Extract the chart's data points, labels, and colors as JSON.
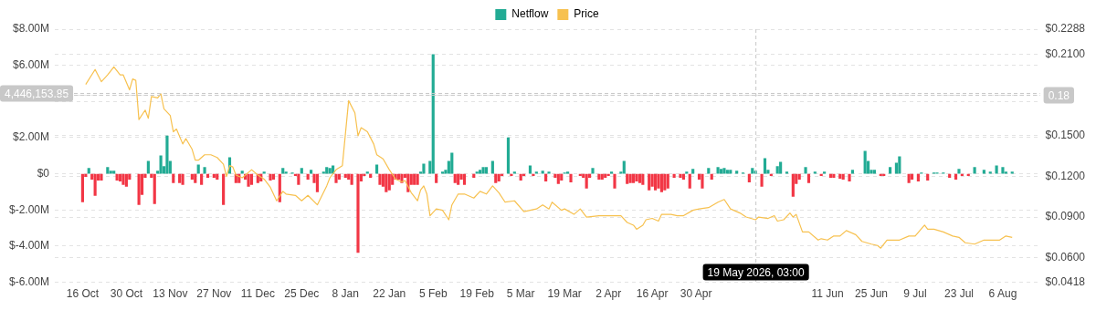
{
  "chart_data": {
    "type": "bar",
    "legend": "top",
    "grid": "y",
    "xlim": [
      "2025-10-15",
      "2026-08-10"
    ],
    "xticks": [
      {
        "value": "2025-10-16",
        "label": "16 Oct"
      },
      {
        "value": "2025-10-30",
        "label": "30 Oct"
      },
      {
        "value": "2025-11-13",
        "label": "13 Nov"
      },
      {
        "value": "2025-11-27",
        "label": "27 Nov"
      },
      {
        "value": "2025-12-11",
        "label": "11 Dec"
      },
      {
        "value": "2025-12-25",
        "label": "25 Dec"
      },
      {
        "value": "2026-01-08",
        "label": "8 Jan"
      },
      {
        "value": "2026-01-22",
        "label": "22 Jan"
      },
      {
        "value": "2026-02-05",
        "label": "5 Feb"
      },
      {
        "value": "2026-02-19",
        "label": "19 Feb"
      },
      {
        "value": "2026-03-05",
        "label": "5 Mar"
      },
      {
        "value": "2026-03-19",
        "label": "19 Mar"
      },
      {
        "value": "2026-04-02",
        "label": "2 Apr"
      },
      {
        "value": "2026-04-16",
        "label": "16 Apr"
      },
      {
        "value": "2026-04-30",
        "label": "30 Apr"
      },
      {
        "value": "2026-06-11",
        "label": "11 Jun"
      },
      {
        "value": "2026-06-25",
        "label": "25 Jun"
      },
      {
        "value": "2026-07-09",
        "label": "9 Jul"
      },
      {
        "value": "2026-07-23",
        "label": "23 Jul"
      },
      {
        "value": "2026-08-06",
        "label": "6 Aug"
      }
    ],
    "ylim": [
      -6000000,
      8000000
    ],
    "yticks": [
      {
        "value": -6000000,
        "label": "$-6.00M"
      },
      {
        "value": -4000000,
        "label": "$-4.00M"
      },
      {
        "value": -2000000,
        "label": "$-2.00M"
      },
      {
        "value": 0,
        "label": "$0"
      },
      {
        "value": 2000000,
        "label": "$2.00M"
      },
      {
        "value": 4000000,
        "label": null
      },
      {
        "value": 6000000,
        "label": "$6.00M"
      },
      {
        "value": 8000000,
        "label": "$8.00M"
      }
    ],
    "y2lim": [
      0.0418,
      0.2288
    ],
    "y2ticks": [
      {
        "value": 0.0418,
        "label": "$0.0418"
      },
      {
        "value": 0.06,
        "label": "$0.0600"
      },
      {
        "value": 0.09,
        "label": "$0.0900"
      },
      {
        "value": 0.12,
        "label": "$0.1200"
      },
      {
        "value": 0.15,
        "label": "$0.1500"
      },
      {
        "value": 0.18,
        "label": null
      },
      {
        "value": 0.21,
        "label": "$0.2100"
      },
      {
        "value": 0.2288,
        "label": "$0.2288"
      }
    ],
    "ref_lines": [
      {
        "axis": "x",
        "value": "2026-05-19T03:00",
        "label": "19 May 2026, 03:00",
        "color": "#c8c8c8",
        "line_style": "dashed"
      },
      {
        "axis": "y",
        "value": 4446153.85,
        "label": "4,446,153.85",
        "color": "#c8c8c8",
        "line_style": "dashed"
      },
      {
        "axis": "y2",
        "value": 0.18,
        "label": "0.18",
        "color": "#c8c8c8",
        "line_style": "dashed"
      }
    ],
    "series": [
      {
        "name": "Netflow",
        "color": "#22ab94",
        "x": [
          "2025-10-16",
          "2025-10-17",
          "2025-10-18",
          "2025-10-19",
          "2025-10-20",
          "2025-10-21",
          "2025-10-22",
          "2025-10-24",
          "2025-10-25",
          "2025-10-26",
          "2025-10-27",
          "2025-10-28",
          "2025-10-29",
          "2025-10-30",
          "2025-10-31",
          "2025-11-03",
          "2025-11-04",
          "2025-11-05",
          "2025-11-06",
          "2025-11-07",
          "2025-11-08",
          "2025-11-09",
          "2025-11-10",
          "2025-11-11",
          "2025-11-12",
          "2025-11-13",
          "2025-11-14",
          "2025-11-16",
          "2025-11-17",
          "2025-11-20",
          "2025-11-21",
          "2025-11-22",
          "2025-11-23",
          "2025-11-24",
          "2025-11-25",
          "2025-11-27",
          "2025-11-28",
          "2025-11-30",
          "2025-12-02",
          "2025-12-04",
          "2025-12-05",
          "2025-12-06",
          "2025-12-07",
          "2025-12-08",
          "2025-12-09",
          "2025-12-11",
          "2025-12-12",
          "2025-12-13",
          "2025-12-15",
          "2025-12-16",
          "2025-12-18",
          "2025-12-19",
          "2025-12-20",
          "2025-12-22",
          "2025-12-23",
          "2025-12-24",
          "2025-12-25",
          "2025-12-27",
          "2025-12-28",
          "2025-12-29",
          "2025-12-30",
          "2026-01-01",
          "2026-01-02",
          "2026-01-03",
          "2026-01-04",
          "2026-01-05",
          "2026-01-06",
          "2026-01-08",
          "2026-01-09",
          "2026-01-10",
          "2026-01-12",
          "2026-01-13",
          "2026-01-14",
          "2026-01-15",
          "2026-01-16",
          "2026-01-18",
          "2026-01-19",
          "2026-01-20",
          "2026-01-21",
          "2026-01-22",
          "2026-01-23",
          "2026-01-24",
          "2026-01-25",
          "2026-01-26",
          "2026-01-27",
          "2026-01-28",
          "2026-01-29",
          "2026-01-30",
          "2026-01-31",
          "2026-02-01",
          "2026-02-02",
          "2026-02-04",
          "2026-02-05",
          "2026-02-06",
          "2026-02-08",
          "2026-02-09",
          "2026-02-10",
          "2026-02-11",
          "2026-02-12",
          "2026-02-13",
          "2026-02-14",
          "2026-02-15",
          "2026-02-18",
          "2026-02-19",
          "2026-02-20",
          "2026-02-21",
          "2026-02-22",
          "2026-02-24",
          "2026-02-25",
          "2026-02-26",
          "2026-02-27",
          "2026-03-01",
          "2026-03-02",
          "2026-03-03",
          "2026-03-05",
          "2026-03-06",
          "2026-03-08",
          "2026-03-09",
          "2026-03-10",
          "2026-03-12",
          "2026-03-13",
          "2026-03-14",
          "2026-03-16",
          "2026-03-17",
          "2026-03-18",
          "2026-03-19",
          "2026-03-20",
          "2026-03-21",
          "2026-03-24",
          "2026-03-25",
          "2026-03-26",
          "2026-03-27",
          "2026-03-28",
          "2026-03-30",
          "2026-03-31",
          "2026-04-01",
          "2026-04-02",
          "2026-04-03",
          "2026-04-04",
          "2026-04-06",
          "2026-04-07",
          "2026-04-08",
          "2026-04-09",
          "2026-04-10",
          "2026-04-11",
          "2026-04-12",
          "2026-04-13",
          "2026-04-15",
          "2026-04-16",
          "2026-04-17",
          "2026-04-18",
          "2026-04-19",
          "2026-04-20",
          "2026-04-21",
          "2026-04-23",
          "2026-04-25",
          "2026-04-26",
          "2026-04-27",
          "2026-04-28",
          "2026-04-29",
          "2026-05-01",
          "2026-05-02",
          "2026-05-04",
          "2026-05-05",
          "2026-05-07",
          "2026-05-08",
          "2026-05-09",
          "2026-05-10",
          "2026-05-11",
          "2026-05-13",
          "2026-05-15",
          "2026-05-17",
          "2026-05-18",
          "2026-05-19",
          "2026-05-21",
          "2026-05-22",
          "2026-05-23",
          "2026-05-24",
          "2026-05-26",
          "2026-05-27",
          "2026-05-29",
          "2026-05-31",
          "2026-06-01",
          "2026-06-02",
          "2026-06-04",
          "2026-06-05",
          "2026-06-07",
          "2026-06-09",
          "2026-06-10",
          "2026-06-12",
          "2026-06-13",
          "2026-06-15",
          "2026-06-16",
          "2026-06-18",
          "2026-06-19",
          "2026-06-23",
          "2026-06-24",
          "2026-06-25",
          "2026-06-26",
          "2026-06-28",
          "2026-06-29",
          "2026-07-01",
          "2026-07-03",
          "2026-07-04",
          "2026-07-07",
          "2026-07-08",
          "2026-07-10",
          "2026-07-11",
          "2026-07-13",
          "2026-07-15",
          "2026-07-16",
          "2026-07-18",
          "2026-07-20",
          "2026-07-22",
          "2026-07-23",
          "2026-07-24",
          "2026-07-26",
          "2026-07-28",
          "2026-07-31",
          "2026-08-02",
          "2026-08-04",
          "2026-08-06",
          "2026-08-07",
          "2026-08-09"
        ],
        "values": [
          -1550000,
          -150000,
          300000,
          -300000,
          -1200000,
          -350000,
          -350000,
          350000,
          150000,
          150000,
          -350000,
          -400000,
          -600000,
          -700000,
          -300000,
          -1700000,
          -1150000,
          -200000,
          700000,
          -200000,
          -1650000,
          150000,
          1000000,
          400000,
          2100000,
          700000,
          -500000,
          -500000,
          -600000,
          -300000,
          -500000,
          500000,
          -600000,
          350000,
          -200000,
          -200000,
          -300000,
          -1700000,
          900000,
          -500000,
          -500000,
          150000,
          -300000,
          -700000,
          -600000,
          -500000,
          -400000,
          100000,
          -350000,
          -300000,
          -1550000,
          300000,
          100000,
          50000,
          -100000,
          -600000,
          300000,
          -300000,
          200000,
          -500000,
          -1000000,
          100000,
          350000,
          300000,
          450000,
          -500000,
          -300000,
          -200000,
          -300000,
          -600000,
          -4350000,
          -400000,
          -100000,
          100000,
          -200000,
          500000,
          -600000,
          -700000,
          -1000000,
          -900000,
          -600000,
          -300000,
          -300000,
          -500000,
          -200000,
          -1000000,
          -600000,
          -600000,
          -600000,
          100000,
          550000,
          700000,
          6600000,
          -500000,
          100000,
          200000,
          700000,
          1150000,
          -500000,
          -600000,
          -300000,
          -600000,
          -200000,
          100000,
          200000,
          350000,
          350000,
          700000,
          -500000,
          -400000,
          -100000,
          2000000,
          -100000,
          100000,
          -350000,
          -100000,
          450000,
          -100000,
          100000,
          150000,
          -400000,
          100000,
          -200000,
          -550000,
          -350000,
          50000,
          100000,
          -450000,
          -100000,
          -200000,
          -800000,
          -200000,
          300000,
          -300000,
          -300000,
          -200000,
          -100000,
          100000,
          -800000,
          100000,
          700000,
          -550000,
          -500000,
          -500000,
          -400000,
          -500000,
          -600000,
          -900000,
          -700000,
          -900000,
          -800000,
          -1000000,
          -900000,
          -800000,
          -200000,
          -200000,
          -300000,
          100000,
          -800000,
          250000,
          -300000,
          -800000,
          300000,
          -300000,
          350000,
          250000,
          300000,
          200000,
          200000,
          150000,
          50000,
          -450000,
          300000,
          150000,
          -700000,
          850000,
          200000,
          -100000,
          400000,
          650000,
          100000,
          -1250000,
          -550000,
          -300000,
          350000,
          -500000,
          100000,
          -100000,
          100000,
          -200000,
          -200000,
          -250000,
          -300000,
          -400000,
          200000,
          1250000,
          700000,
          200000,
          200000,
          -100000,
          -100000,
          350000,
          600000,
          950000,
          -500000,
          -300000,
          -400000,
          50000,
          -350000,
          50000,
          50000,
          50000,
          -200000,
          -300000,
          250000,
          -100000,
          -100000,
          350000,
          200000,
          100000,
          450000,
          350000,
          100000,
          100000
        ],
        "colors": [
          "#f23645",
          "#f23645",
          "#22ab94",
          "#f23645",
          "#f23645",
          "#f23645",
          "#f23645",
          "#22ab94",
          "#22ab94",
          "#22ab94",
          "#f23645",
          "#f23645",
          "#f23645",
          "#f23645",
          "#f23645",
          "#f23645",
          "#f23645",
          "#f23645",
          "#22ab94",
          "#f23645",
          "#f23645",
          "#22ab94",
          "#22ab94",
          "#22ab94",
          "#22ab94",
          "#22ab94",
          "#f23645",
          "#f23645",
          "#f23645",
          "#f23645",
          "#f23645",
          "#22ab94",
          "#f23645",
          "#22ab94",
          "#f23645",
          "#f23645",
          "#f23645",
          "#f23645",
          "#22ab94",
          "#f23645",
          "#f23645",
          "#22ab94",
          "#f23645",
          "#f23645",
          "#f23645",
          "#f23645",
          "#f23645",
          "#22ab94",
          "#f23645",
          "#f23645",
          "#f23645",
          "#22ab94",
          "#22ab94",
          "#22ab94",
          "#f23645",
          "#f23645",
          "#22ab94",
          "#f23645",
          "#22ab94",
          "#f23645",
          "#f23645",
          "#22ab94",
          "#22ab94",
          "#22ab94",
          "#22ab94",
          "#f23645",
          "#f23645",
          "#f23645",
          "#f23645",
          "#f23645",
          "#f23645",
          "#f23645",
          "#f23645",
          "#22ab94",
          "#f23645",
          "#22ab94",
          "#f23645",
          "#f23645",
          "#f23645",
          "#f23645",
          "#f23645",
          "#f23645",
          "#f23645",
          "#f23645",
          "#f23645",
          "#f23645",
          "#f23645",
          "#f23645",
          "#f23645",
          "#22ab94",
          "#22ab94",
          "#22ab94",
          "#22ab94",
          "#f23645",
          "#22ab94",
          "#22ab94",
          "#22ab94",
          "#22ab94",
          "#f23645",
          "#f23645",
          "#f23645",
          "#f23645",
          "#f23645",
          "#22ab94",
          "#22ab94",
          "#22ab94",
          "#22ab94",
          "#22ab94",
          "#f23645",
          "#f23645",
          "#f23645",
          "#22ab94",
          "#f23645",
          "#22ab94",
          "#f23645",
          "#f23645",
          "#22ab94",
          "#f23645",
          "#22ab94",
          "#22ab94",
          "#f23645",
          "#22ab94",
          "#f23645",
          "#f23645",
          "#f23645",
          "#22ab94",
          "#22ab94",
          "#f23645",
          "#f23645",
          "#f23645",
          "#f23645",
          "#f23645",
          "#22ab94",
          "#f23645",
          "#f23645",
          "#f23645",
          "#f23645",
          "#22ab94",
          "#f23645",
          "#22ab94",
          "#22ab94",
          "#f23645",
          "#f23645",
          "#f23645",
          "#f23645",
          "#f23645",
          "#f23645",
          "#f23645",
          "#f23645",
          "#f23645",
          "#f23645",
          "#f23645",
          "#f23645",
          "#f23645",
          "#f23645",
          "#f23645",
          "#f23645",
          "#22ab94",
          "#f23645",
          "#22ab94",
          "#f23645",
          "#f23645",
          "#22ab94",
          "#f23645",
          "#22ab94",
          "#22ab94",
          "#22ab94",
          "#22ab94",
          "#22ab94",
          "#22ab94",
          "#22ab94",
          "#f23645",
          "#22ab94",
          "#22ab94",
          "#f23645",
          "#22ab94",
          "#22ab94",
          "#f23645",
          "#22ab94",
          "#22ab94",
          "#22ab94",
          "#f23645",
          "#f23645",
          "#f23645",
          "#22ab94",
          "#f23645",
          "#22ab94",
          "#f23645",
          "#22ab94",
          "#f23645",
          "#f23645",
          "#f23645",
          "#f23645",
          "#f23645",
          "#22ab94",
          "#22ab94",
          "#22ab94",
          "#22ab94",
          "#22ab94",
          "#f23645",
          "#f23645",
          "#22ab94",
          "#22ab94",
          "#22ab94",
          "#f23645",
          "#f23645",
          "#f23645",
          "#22ab94",
          "#f23645",
          "#22ab94",
          "#22ab94",
          "#22ab94",
          "#f23645",
          "#f23645",
          "#22ab94",
          "#f23645",
          "#f23645",
          "#22ab94",
          "#22ab94",
          "#22ab94",
          "#22ab94",
          "#22ab94",
          "#22ab94",
          "#22ab94"
        ]
      },
      {
        "name": "Price",
        "type": "line",
        "axis": "y2",
        "color": "#f7c14f",
        "x": [
          "2025-10-17",
          "2025-10-20",
          "2025-10-22",
          "2025-10-24",
          "2025-10-26",
          "2025-10-28",
          "2025-10-29",
          "2025-10-31",
          "2025-11-01",
          "2025-11-02",
          "2025-11-03",
          "2025-11-05",
          "2025-11-06",
          "2025-11-07",
          "2025-11-09",
          "2025-11-10",
          "2025-11-11",
          "2025-11-13",
          "2025-11-14",
          "2025-11-15",
          "2025-11-17",
          "2025-11-18",
          "2025-11-20",
          "2025-11-21",
          "2025-11-22",
          "2025-11-24",
          "2025-11-26",
          "2025-11-28",
          "2025-11-30",
          "2025-12-01",
          "2025-12-02",
          "2025-12-03",
          "2025-12-04",
          "2025-12-06",
          "2025-12-09",
          "2025-12-11",
          "2025-12-13",
          "2025-12-15",
          "2025-12-17",
          "2025-12-19",
          "2025-12-20",
          "2025-12-23",
          "2025-12-25",
          "2025-12-27",
          "2025-12-30",
          "2026-01-02",
          "2026-01-03",
          "2026-01-05",
          "2026-01-07",
          "2026-01-09",
          "2026-01-11",
          "2026-01-12",
          "2026-01-13",
          "2026-01-15",
          "2026-01-17",
          "2026-01-18",
          "2026-01-20",
          "2026-01-22",
          "2026-01-24",
          "2026-01-26",
          "2026-01-27",
          "2026-01-29",
          "2026-01-31",
          "2026-02-01",
          "2026-02-02",
          "2026-02-03",
          "2026-02-04",
          "2026-02-06",
          "2026-02-08",
          "2026-02-10",
          "2026-02-11",
          "2026-02-13",
          "2026-02-15",
          "2026-02-18",
          "2026-02-20",
          "2026-02-22",
          "2026-02-24",
          "2026-02-26",
          "2026-02-28",
          "2026-03-03",
          "2026-03-06",
          "2026-03-10",
          "2026-03-12",
          "2026-03-14",
          "2026-03-15",
          "2026-03-18",
          "2026-03-19",
          "2026-03-22",
          "2026-03-24",
          "2026-03-26",
          "2026-03-30",
          "2026-04-06",
          "2026-04-08",
          "2026-04-10",
          "2026-04-11",
          "2026-04-13",
          "2026-04-14",
          "2026-04-16",
          "2026-04-18",
          "2026-04-19",
          "2026-04-22",
          "2026-04-24",
          "2026-04-26",
          "2026-04-29",
          "2026-05-01",
          "2026-05-04",
          "2026-05-07",
          "2026-05-09",
          "2026-05-11",
          "2026-05-14",
          "2026-05-16",
          "2026-05-19",
          "2026-05-20",
          "2026-05-23",
          "2026-05-25",
          "2026-05-26",
          "2026-05-28",
          "2026-05-30",
          "2026-05-31",
          "2026-06-01",
          "2026-06-03",
          "2026-06-05",
          "2026-06-08",
          "2026-06-09",
          "2026-06-11",
          "2026-06-13",
          "2026-06-15",
          "2026-06-17",
          "2026-06-20",
          "2026-06-22",
          "2026-06-25",
          "2026-06-27",
          "2026-06-28",
          "2026-06-30",
          "2026-07-04",
          "2026-07-07",
          "2026-07-09",
          "2026-07-12",
          "2026-07-13",
          "2026-07-15",
          "2026-07-18",
          "2026-07-21",
          "2026-07-23",
          "2026-07-25",
          "2026-07-28",
          "2026-07-31",
          "2026-08-02",
          "2026-08-05",
          "2026-08-07",
          "2026-08-09"
        ],
        "values": [
          0.188,
          0.199,
          0.19,
          0.195,
          0.201,
          0.195,
          0.195,
          0.184,
          0.192,
          0.191,
          0.162,
          0.169,
          0.163,
          0.179,
          0.178,
          0.181,
          0.17,
          0.165,
          0.153,
          0.155,
          0.144,
          0.148,
          0.14,
          0.132,
          0.132,
          0.136,
          0.136,
          0.134,
          0.129,
          0.12,
          0.128,
          0.127,
          0.121,
          0.119,
          0.125,
          0.121,
          0.118,
          0.112,
          0.102,
          0.109,
          0.107,
          0.106,
          0.102,
          0.106,
          0.099,
          0.113,
          0.119,
          0.125,
          0.128,
          0.176,
          0.167,
          0.15,
          0.156,
          0.153,
          0.144,
          0.136,
          0.133,
          0.125,
          0.118,
          0.116,
          0.117,
          0.108,
          0.102,
          0.11,
          0.113,
          0.107,
          0.091,
          0.096,
          0.095,
          0.088,
          0.099,
          0.107,
          0.107,
          0.104,
          0.109,
          0.107,
          0.113,
          0.108,
          0.101,
          0.102,
          0.094,
          0.096,
          0.099,
          0.096,
          0.101,
          0.095,
          0.096,
          0.092,
          0.096,
          0.09,
          0.091,
          0.091,
          0.086,
          0.084,
          0.081,
          0.084,
          0.088,
          0.089,
          0.087,
          0.092,
          0.092,
          0.091,
          0.091,
          0.095,
          0.096,
          0.097,
          0.101,
          0.103,
          0.096,
          0.093,
          0.09,
          0.088,
          0.09,
          0.089,
          0.091,
          0.087,
          0.088,
          0.093,
          0.09,
          0.092,
          0.079,
          0.079,
          0.073,
          0.074,
          0.073,
          0.076,
          0.076,
          0.08,
          0.077,
          0.072,
          0.07,
          0.069,
          0.067,
          0.073,
          0.073,
          0.076,
          0.076,
          0.084,
          0.081,
          0.081,
          0.079,
          0.076,
          0.075,
          0.071,
          0.07,
          0.073,
          0.073,
          0.073,
          0.076,
          0.075
        ]
      }
    ]
  }
}
